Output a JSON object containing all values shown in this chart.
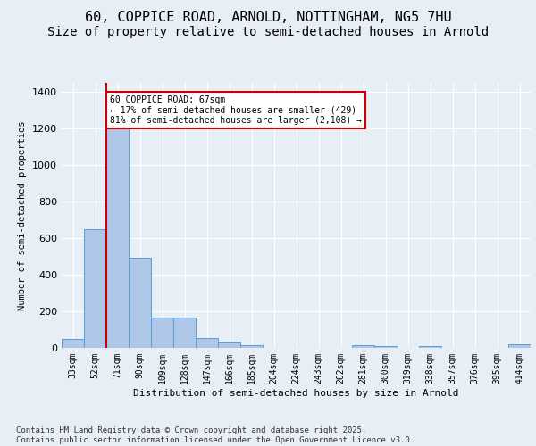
{
  "title_line1": "60, COPPICE ROAD, ARNOLD, NOTTINGHAM, NG5 7HU",
  "title_line2": "Size of property relative to semi-detached houses in Arnold",
  "xlabel": "Distribution of semi-detached houses by size in Arnold",
  "ylabel": "Number of semi-detached properties",
  "categories": [
    "33sqm",
    "52sqm",
    "71sqm",
    "90sqm",
    "109sqm",
    "128sqm",
    "147sqm",
    "166sqm",
    "185sqm",
    "204sqm",
    "224sqm",
    "243sqm",
    "262sqm",
    "281sqm",
    "300sqm",
    "319sqm",
    "338sqm",
    "357sqm",
    "376sqm",
    "395sqm",
    "414sqm"
  ],
  "values": [
    50,
    650,
    1200,
    490,
    165,
    165,
    55,
    35,
    15,
    0,
    0,
    0,
    0,
    15,
    10,
    0,
    10,
    0,
    0,
    0,
    20
  ],
  "bar_color": "#aec6e8",
  "bar_edge_color": "#5a9fd4",
  "annotation_text": "60 COPPICE ROAD: 67sqm\n← 17% of semi-detached houses are smaller (429)\n81% of semi-detached houses are larger (2,108) →",
  "annotation_box_color": "#ffffff",
  "annotation_box_edge_color": "#cc0000",
  "marker_line_color": "#cc0000",
  "ylim": [
    0,
    1450
  ],
  "background_color": "#e8eef5",
  "plot_background_color": "#e8eef5",
  "footer_text": "Contains HM Land Registry data © Crown copyright and database right 2025.\nContains public sector information licensed under the Open Government Licence v3.0.",
  "title_fontsize": 11,
  "subtitle_fontsize": 10
}
